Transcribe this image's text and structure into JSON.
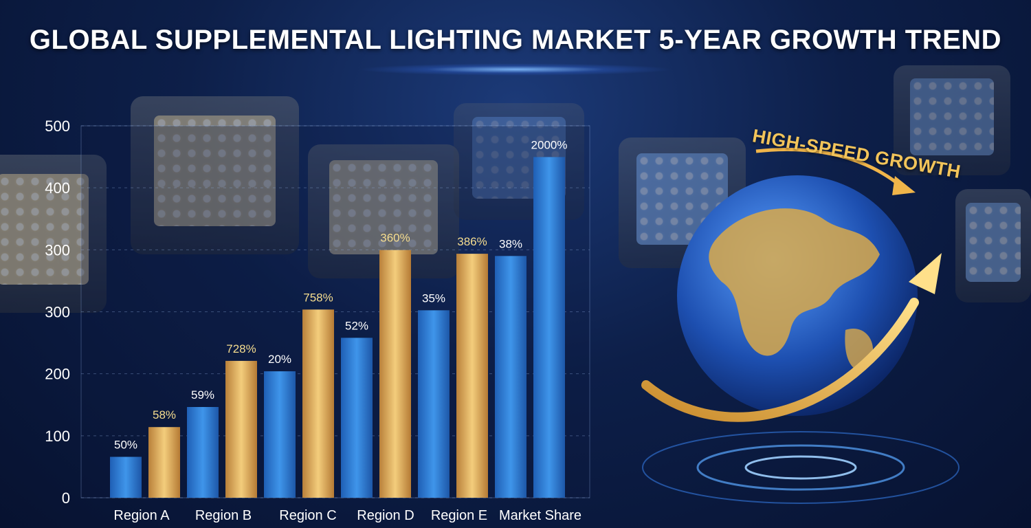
{
  "title": "GLOBAL SUPPLEMENTAL LIGHTING MARKET 5-YEAR GROWTH TREND",
  "slogan": "HIGH-SPEED GROWTH",
  "colors": {
    "blue_bar": "#2f7fd6",
    "gold_bar": "#e7b45c",
    "tick_text": "#ffffff",
    "label_text": "#f4e3a8"
  },
  "chart_data": {
    "type": "bar",
    "ylim": [
      0,
      500
    ],
    "y_ticks": [
      "500",
      "400",
      "300",
      "300",
      "200",
      "100",
      "0"
    ],
    "categories": [
      "Region A",
      "Region B",
      "Region C",
      "Region D",
      "Region E",
      "Market Share"
    ],
    "bars": [
      {
        "series": "blue",
        "value": 55,
        "label": "50%"
      },
      {
        "series": "gold",
        "value": 95,
        "label": "58%"
      },
      {
        "series": "blue",
        "value": 122,
        "label": "59%"
      },
      {
        "series": "gold",
        "value": 184,
        "label": "728%"
      },
      {
        "series": "blue",
        "value": 170,
        "label": "20%"
      },
      {
        "series": "gold",
        "value": 253,
        "label": "758%"
      },
      {
        "series": "blue",
        "value": 215,
        "label": "52%"
      },
      {
        "series": "gold",
        "value": 333,
        "label": "360%"
      },
      {
        "series": "blue",
        "value": 252,
        "label": "35%"
      },
      {
        "series": "gold",
        "value": 328,
        "label": "386%"
      },
      {
        "series": "blue",
        "value": 325,
        "label": "38%"
      },
      {
        "series": "blue",
        "value": 458,
        "label": "2000%"
      }
    ]
  }
}
